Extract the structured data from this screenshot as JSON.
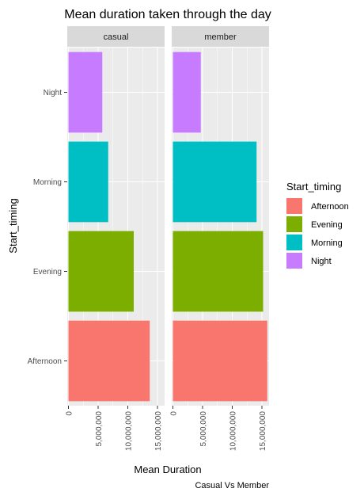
{
  "chart_data": {
    "type": "bar",
    "orientation": "horizontal",
    "faceted": true,
    "title": "Mean duration taken through the day",
    "xlabel": "Mean Duration",
    "ylabel": "Start_timing",
    "caption": "Casual Vs Member",
    "categories": [
      "Afternoon",
      "Evening",
      "Morning",
      "Night"
    ],
    "x_ticks": [
      "0",
      "5,000,000",
      "10,000,000",
      "15,000,000"
    ],
    "x_tick_values": [
      0,
      5000000,
      10000000,
      15000000
    ],
    "xlim": [
      -200000,
      16200000
    ],
    "facets": [
      {
        "name": "casual",
        "values": [
          13700000,
          11000000,
          6700000,
          5700000
        ]
      },
      {
        "name": "member",
        "values": [
          15900000,
          15200000,
          14100000,
          4700000
        ]
      }
    ],
    "legend": {
      "title": "Start_timing",
      "position": "right",
      "entries": [
        "Afternoon",
        "Evening",
        "Morning",
        "Night"
      ]
    },
    "colors": {
      "Afternoon": "#F8766D",
      "Evening": "#7CAE00",
      "Morning": "#00BFC4",
      "Night": "#C77CFF"
    },
    "panel_background": "#EBEBEB",
    "strip_background": "#D9D9D9",
    "grid": true
  }
}
